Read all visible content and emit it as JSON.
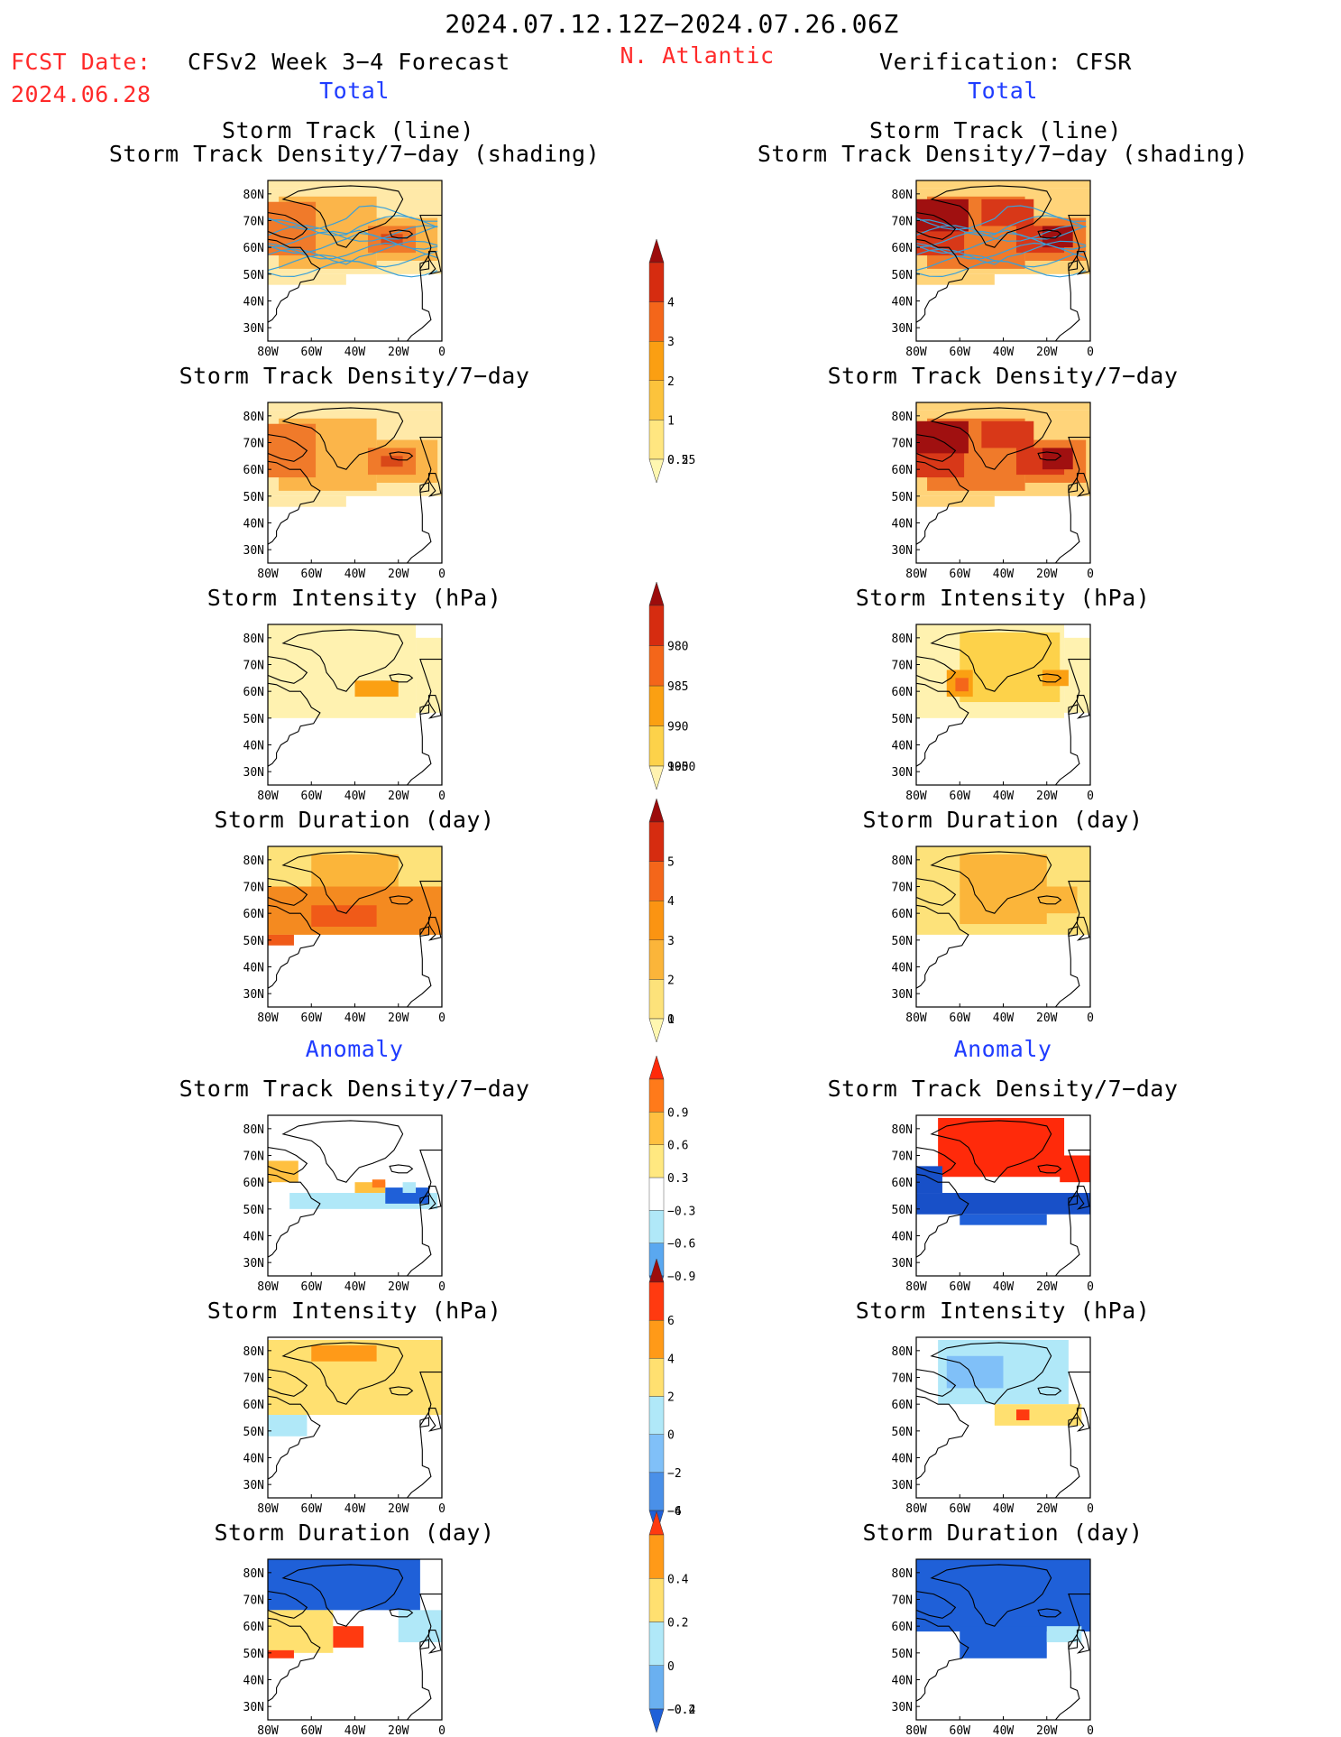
{
  "header": {
    "date_range": "2024.07.12.12Z−2024.07.26.06Z",
    "fcst_label": "FCST Date:",
    "fcst_date": "2024.06.28",
    "region": "N. Atlantic",
    "left_title": "CFSv2 Week 3−4 Forecast",
    "right_title": "Verification: CFSR",
    "total_label": "Total",
    "anomaly_label": "Anomaly"
  },
  "panel_titles": {
    "storm_track_line": "Storm Track (line)",
    "storm_track_shading": "Storm Track Density/7−day (shading)",
    "density": "Storm Track Density/7−day",
    "intensity": "Storm Intensity (hPa)",
    "duration": "Storm Duration (day)"
  },
  "axes": {
    "lat_ticks": [
      "80N",
      "70N",
      "60N",
      "50N",
      "40N",
      "30N"
    ],
    "lon_ticks": [
      "80W",
      "60W",
      "40W",
      "20W",
      "0"
    ]
  },
  "colorbars": {
    "density_total": {
      "labels": [
        "0.25",
        "0.5",
        "1",
        "2",
        "3",
        "4"
      ],
      "colors": [
        "#fff7b0",
        "#ffe680",
        "#fcc33c",
        "#fb9f12",
        "#f4661a",
        "#d62c10",
        "#9c0c0c"
      ]
    },
    "intensity_total": {
      "labels": [
        "1000",
        "995",
        "990",
        "985",
        "980"
      ],
      "colors": [
        "#fff2b0",
        "#fdd24a",
        "#fba012",
        "#f4661a",
        "#d62c10",
        "#9c0c0c"
      ]
    },
    "duration_total": {
      "labels": [
        "0",
        "1",
        "2",
        "3",
        "4",
        "5"
      ],
      "colors": [
        "#fff7b0",
        "#fde27a",
        "#fbb53a",
        "#fb9412",
        "#f4661a",
        "#d62c10",
        "#9c0c0c"
      ]
    },
    "density_anom": {
      "labels": [
        "0.9",
        "0.6",
        "0.3",
        "−0.3",
        "−0.6",
        "−0.9"
      ],
      "colors": [
        "#ff2a0a",
        "#ff7a1a",
        "#ffc040",
        "#ffe880",
        "#ffffff",
        "#b0e8f8",
        "#5aa8f0",
        "#1f60d8"
      ]
    },
    "intensity_anom": {
      "labels": [
        "6",
        "4",
        "2",
        "0",
        "−2",
        "−4",
        "−6"
      ],
      "colors": [
        "#9c0c0c",
        "#ff3a10",
        "#ff9a18",
        "#ffe070",
        "#b0e8f8",
        "#80c0f8",
        "#4a90e8",
        "#1f60d8"
      ]
    },
    "duration_anom": {
      "labels": [
        "0.4",
        "0.2",
        "0",
        "−0.2",
        "−0.4"
      ],
      "colors": [
        "#ff3a10",
        "#ff9a18",
        "#ffe070",
        "#b0e8f8",
        "#6ab0f0",
        "#1f60d8"
      ]
    }
  },
  "map_fields": {
    "f_track": {
      "cold": "#ffe9a8",
      "mid": "#fbb54a",
      "hot": "#f07a2a",
      "peak": "#d94818"
    },
    "v_track": {
      "cold": "#ffd47a",
      "mid": "#f07a2a",
      "hot": "#d83818",
      "peak": "#a01010"
    },
    "f_inten": {
      "cold": "#fff2b0",
      "mid": "#fff2b0",
      "hot": "#fba012",
      "peak": "#fba012"
    },
    "v_inten": {
      "cold": "#fff2b0",
      "mid": "#fdd24a",
      "hot": "#fba012",
      "peak": "#f4661a"
    },
    "f_dur": {
      "cold": "#fde27a",
      "mid": "#fbb53a",
      "hot": "#f48a20",
      "peak": "#f05a18"
    },
    "v_dur": {
      "cold": "#fde27a",
      "mid": "#fbb53a",
      "hot": "#fbb53a",
      "peak": "#f48a20"
    },
    "f_anom_den": {
      "pos": "#ffc040",
      "neg": "#b0e8f8",
      "strong_neg": "#1f60d8",
      "strong_pos": "#ff7a1a"
    },
    "v_anom_den": {
      "pos": "#ff4010",
      "neg": "#2060d8",
      "strong_neg": "#1850c8",
      "strong_pos": "#ff2a0a"
    },
    "f_anom_int": {
      "pos": "#ffe070",
      "neg": "#b0e8f8",
      "strong_neg": "#80c0f8",
      "strong_pos": "#ff9a18"
    },
    "v_anom_int": {
      "pos": "#ffe070",
      "neg": "#b0e8f8",
      "strong_neg": "#80c0f8",
      "strong_pos": "#ff3a10"
    },
    "f_anom_dur": {
      "pos": "#ffe070",
      "neg": "#b0e8f8",
      "strong_neg": "#1f60d8",
      "strong_pos": "#ff3a10"
    },
    "v_anom_dur": {
      "pos": "#b0e8f8",
      "neg": "#1f60d8",
      "strong_neg": "#1f60d8",
      "strong_pos": "#1f60d8"
    },
    "track_line": "#3aa0d8"
  }
}
